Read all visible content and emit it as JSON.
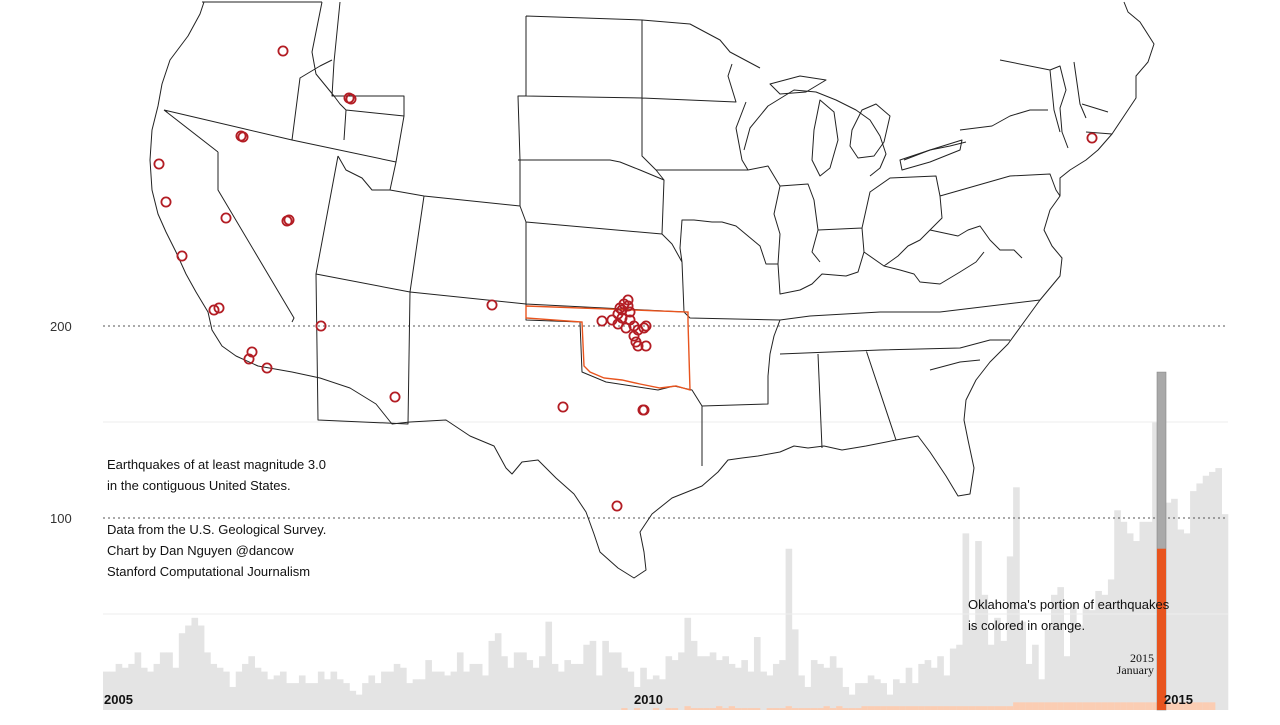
{
  "notes": {
    "description": [
      "Earthquakes of at least magnitude 3.0",
      "in the contiguous United States."
    ],
    "credits": [
      "Data from the U.S. Geological Survey.",
      "Chart by Dan Nguyen @dancow",
      "Stanford Computational Journalism"
    ],
    "oklahoma": [
      "Oklahoma's portion of earthquakes",
      "is colored in orange."
    ]
  },
  "colors": {
    "total_bar": "#e4e4e4",
    "oklahoma_bar": "#fbcdb3",
    "current_total": "#a9a9a9",
    "current_oklahoma": "#e8541e",
    "quake_marker": "#b31d24",
    "oklahoma_outline": "#e8541e",
    "map_line": "#222222"
  },
  "chart_data": {
    "type": "bar",
    "title": "",
    "xlabel": "",
    "ylabel": "",
    "ylim": [
      0,
      200
    ],
    "yticks": [
      100,
      200
    ],
    "grid": true,
    "x_ticks": [
      "2005",
      "2010",
      "2015"
    ],
    "current_month_label": [
      "2015",
      "January"
    ],
    "series": [
      {
        "values": [
          20,
          20,
          24,
          22,
          24,
          30,
          22,
          20,
          24,
          30,
          30,
          22,
          40,
          44,
          48,
          44,
          30,
          24,
          22,
          20,
          12,
          20,
          24,
          28,
          22,
          20,
          16,
          18,
          20,
          14,
          14,
          18,
          14,
          14,
          20,
          16,
          20,
          16,
          14,
          10,
          8,
          14,
          18,
          14,
          20,
          20,
          24,
          22,
          14,
          16,
          16,
          26,
          20,
          20,
          18,
          20,
          30,
          20,
          24,
          24,
          18,
          36,
          40,
          28,
          22,
          30,
          30,
          26,
          22,
          28,
          46,
          24,
          20,
          26,
          24,
          24,
          34,
          36,
          18,
          36,
          30,
          30,
          22,
          20,
          12,
          22,
          16,
          18,
          16,
          28,
          26,
          30,
          48,
          36,
          28,
          28,
          30,
          26,
          28,
          24,
          22,
          26,
          20,
          38,
          20,
          18,
          24,
          26,
          84,
          42,
          18,
          12,
          26,
          24,
          22,
          28,
          22,
          12,
          8,
          14,
          14,
          18,
          16,
          14,
          8,
          16,
          14,
          22,
          14,
          24,
          26,
          22,
          28,
          18,
          32,
          34,
          92,
          44,
          88,
          60,
          34,
          48,
          36,
          80,
          116,
          46,
          24,
          34,
          16,
          42,
          60,
          64,
          28,
          56,
          44,
          54,
          52,
          62,
          60,
          68,
          104,
          98,
          92,
          88,
          98,
          98,
          150,
          176,
          108,
          110,
          94,
          92,
          114,
          118,
          122,
          124,
          126,
          102
        ]
      },
      {
        "name": "Oklahoma",
        "values": [
          0,
          0,
          0,
          0,
          0,
          0,
          0,
          0,
          0,
          0,
          0,
          0,
          0,
          0,
          0,
          0,
          0,
          0,
          0,
          0,
          0,
          0,
          0,
          0,
          0,
          0,
          0,
          0,
          0,
          0,
          0,
          0,
          0,
          0,
          0,
          0,
          0,
          0,
          0,
          0,
          0,
          0,
          0,
          0,
          0,
          0,
          0,
          0,
          0,
          0,
          0,
          0,
          0,
          0,
          0,
          0,
          0,
          0,
          0,
          0,
          0,
          0,
          0,
          0,
          0,
          0,
          0,
          0,
          0,
          0,
          0,
          0,
          0,
          0,
          0,
          0,
          0,
          0,
          0,
          0,
          0,
          0,
          1,
          0,
          1,
          0,
          0,
          1,
          0,
          1,
          1,
          0,
          2,
          1,
          1,
          1,
          1,
          2,
          1,
          2,
          1,
          1,
          1,
          1,
          0,
          1,
          1,
          1,
          2,
          1,
          1,
          1,
          1,
          1,
          2,
          1,
          2,
          1,
          1,
          1,
          2,
          2,
          2,
          2,
          2,
          2,
          2,
          2,
          2,
          2,
          2,
          2,
          2,
          2,
          2,
          2,
          2,
          2,
          2,
          2,
          2,
          2,
          2,
          2,
          4,
          4,
          4,
          4,
          4,
          4,
          4,
          4,
          4,
          4,
          4,
          4,
          4,
          4,
          4,
          4,
          4,
          4,
          4,
          4,
          4,
          4,
          4,
          4,
          4,
          4,
          4,
          4,
          4,
          4,
          4,
          4
        ]
      }
    ],
    "current_month": {
      "total": 176,
      "oklahoma": 84
    }
  }
}
